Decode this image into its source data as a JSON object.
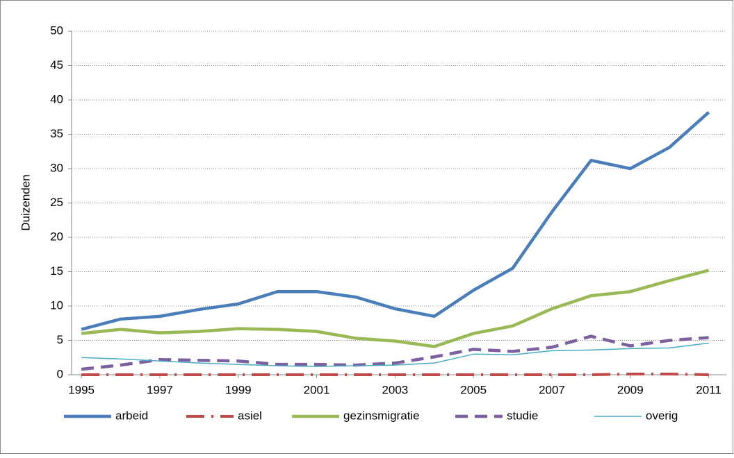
{
  "chart_data": {
    "type": "line",
    "y_label": "Duizenden",
    "x": [
      1995,
      1996,
      1997,
      1998,
      1999,
      2000,
      2001,
      2002,
      2003,
      2004,
      2005,
      2006,
      2007,
      2008,
      2009,
      2010,
      2011
    ],
    "xlim": [
      1994.75,
      2011.45
    ],
    "xticks": [
      1995,
      1997,
      1999,
      2001,
      2003,
      2005,
      2007,
      2009,
      2011
    ],
    "ylim": [
      0,
      50
    ],
    "yticks": [
      0,
      5,
      10,
      15,
      20,
      25,
      30,
      35,
      40,
      45,
      50
    ],
    "grid": true,
    "legend": "bottom",
    "series": [
      {
        "name": "arbeid",
        "color": "#4a7ebb",
        "values": [
          6.6,
          8.1,
          8.5,
          9.5,
          10.3,
          12.1,
          12.1,
          11.3,
          9.6,
          8.5,
          12.3,
          15.5,
          23.7,
          31.2,
          30.0,
          33.1,
          38.2
        ]
      },
      {
        "name": "asiel",
        "color": "#be4b48",
        "values": [
          0,
          0,
          0,
          0,
          0,
          0,
          0,
          0,
          0,
          0,
          0,
          0,
          0,
          0,
          0.1,
          0.1,
          0
        ]
      },
      {
        "name": "gezinsmigratie",
        "color": "#98b954",
        "values": [
          6.0,
          6.6,
          6.1,
          6.3,
          6.7,
          6.6,
          6.3,
          5.3,
          4.9,
          4.1,
          6.0,
          7.1,
          9.6,
          11.5,
          12.1,
          13.7,
          15.2
        ]
      },
      {
        "name": "studie",
        "color": "#7d60a0",
        "values": [
          0.8,
          1.4,
          2.2,
          2.1,
          2.0,
          1.5,
          1.5,
          1.4,
          1.7,
          2.6,
          3.7,
          3.4,
          4.0,
          5.6,
          4.2,
          5.0,
          5.4
        ]
      },
      {
        "name": "overig",
        "color": "#46aac5",
        "values": [
          2.5,
          2.3,
          2.0,
          1.7,
          1.5,
          1.3,
          1.2,
          1.3,
          1.4,
          1.7,
          3.0,
          2.9,
          3.5,
          3.6,
          3.8,
          3.9,
          4.6
        ]
      }
    ]
  }
}
